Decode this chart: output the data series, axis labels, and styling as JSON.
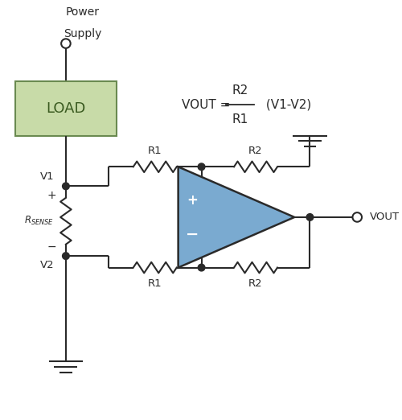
{
  "bg_color": "#ffffff",
  "line_color": "#2a2a2a",
  "load_box_fill": "#c8dba8",
  "load_box_edge": "#6a8a50",
  "op_amp_fill": "#7aaad0",
  "op_amp_edge": "#2a2a2a",
  "load_label": "LOAD",
  "ps_label_line1": "Power",
  "ps_label_line2": "Supply",
  "v1_label": "V1",
  "v2_label": "V2",
  "plus_sign": "+",
  "minus_sign": "−",
  "rsense_label": "R",
  "rsense_sub": "SENSE",
  "vout_label": "VOUT",
  "r1_label": "R1",
  "r2_label": "R2",
  "fig_width": 5.0,
  "fig_height": 5.22,
  "dpi": 100,
  "lw": 1.5
}
